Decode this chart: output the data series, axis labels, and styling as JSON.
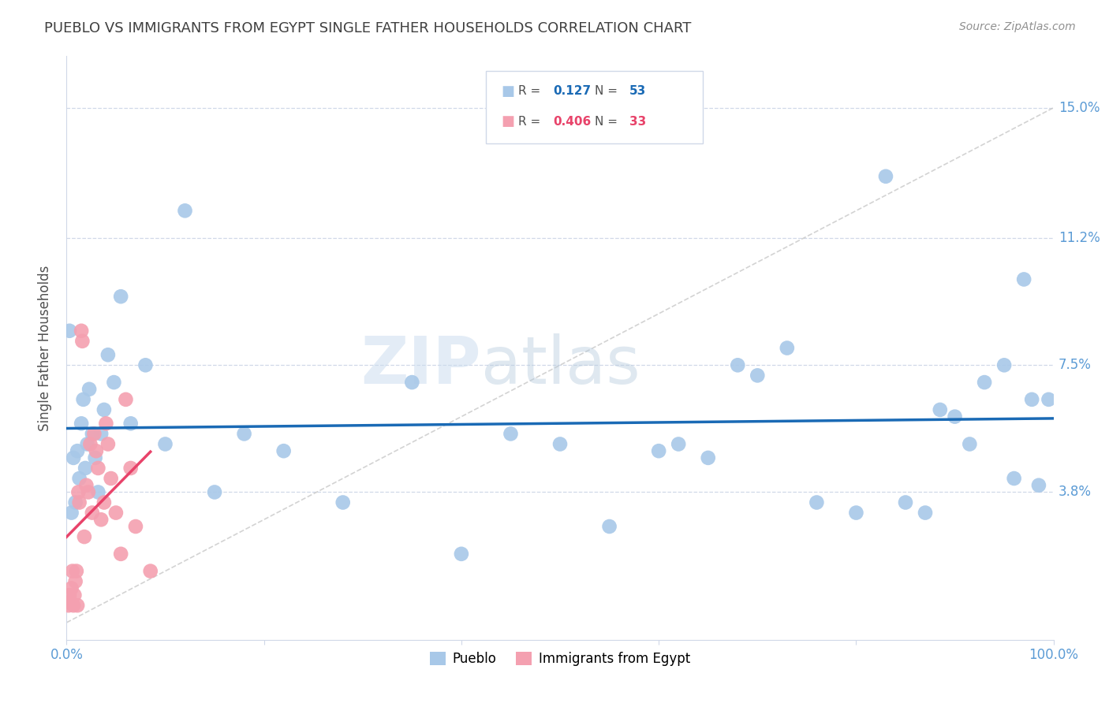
{
  "title": "PUEBLO VS IMMIGRANTS FROM EGYPT SINGLE FATHER HOUSEHOLDS CORRELATION CHART",
  "source": "Source: ZipAtlas.com",
  "ylabel": "Single Father Households",
  "ytick_values": [
    3.8,
    7.5,
    11.2,
    15.0
  ],
  "xlim": [
    0.0,
    100.0
  ],
  "ylim": [
    -0.5,
    16.5
  ],
  "legend_pueblo_R": "0.127",
  "legend_pueblo_N": "53",
  "legend_egypt_R": "0.406",
  "legend_egypt_N": "33",
  "pueblo_x": [
    0.3,
    0.5,
    0.7,
    0.9,
    1.1,
    1.3,
    1.5,
    1.7,
    1.9,
    2.1,
    2.3,
    2.6,
    2.9,
    3.2,
    3.5,
    3.8,
    4.2,
    4.8,
    5.5,
    6.5,
    8.0,
    10.0,
    12.0,
    15.0,
    18.0,
    22.0,
    28.0,
    35.0,
    40.0,
    45.0,
    50.0,
    55.0,
    60.0,
    62.0,
    65.0,
    68.0,
    70.0,
    73.0,
    76.0,
    80.0,
    83.0,
    85.0,
    87.0,
    88.5,
    90.0,
    91.5,
    93.0,
    95.0,
    96.0,
    97.0,
    97.8,
    98.5,
    99.5
  ],
  "pueblo_y": [
    8.5,
    3.2,
    4.8,
    3.5,
    5.0,
    4.2,
    5.8,
    6.5,
    4.5,
    5.2,
    6.8,
    5.5,
    4.8,
    3.8,
    5.5,
    6.2,
    7.8,
    7.0,
    9.5,
    5.8,
    7.5,
    5.2,
    12.0,
    3.8,
    5.5,
    5.0,
    3.5,
    7.0,
    2.0,
    5.5,
    5.2,
    2.8,
    5.0,
    5.2,
    4.8,
    7.5,
    7.2,
    8.0,
    3.5,
    3.2,
    13.0,
    3.5,
    3.2,
    6.2,
    6.0,
    5.2,
    7.0,
    7.5,
    4.2,
    10.0,
    6.5,
    4.0,
    6.5
  ],
  "egypt_x": [
    0.2,
    0.3,
    0.4,
    0.5,
    0.6,
    0.7,
    0.8,
    0.9,
    1.0,
    1.1,
    1.2,
    1.3,
    1.5,
    1.6,
    1.8,
    2.0,
    2.2,
    2.4,
    2.6,
    2.8,
    3.0,
    3.2,
    3.5,
    3.8,
    4.0,
    4.2,
    4.5,
    5.0,
    5.5,
    6.0,
    6.5,
    7.0,
    8.5
  ],
  "egypt_y": [
    0.5,
    0.8,
    0.6,
    1.0,
    1.5,
    0.5,
    0.8,
    1.2,
    1.5,
    0.5,
    3.8,
    3.5,
    8.5,
    8.2,
    2.5,
    4.0,
    3.8,
    5.2,
    3.2,
    5.5,
    5.0,
    4.5,
    3.0,
    3.5,
    5.8,
    5.2,
    4.2,
    3.2,
    2.0,
    6.5,
    4.5,
    2.8,
    1.5
  ],
  "pueblo_line_color": "#1a6ab5",
  "egypt_line_color": "#e8436a",
  "pueblo_dot_color": "#a8c8e8",
  "egypt_dot_color": "#f4a0b0",
  "grid_color": "#d0d8e8",
  "background_color": "#ffffff",
  "title_color": "#404040",
  "axis_color": "#5b9bd5",
  "diag_color": "#c8c8c8"
}
